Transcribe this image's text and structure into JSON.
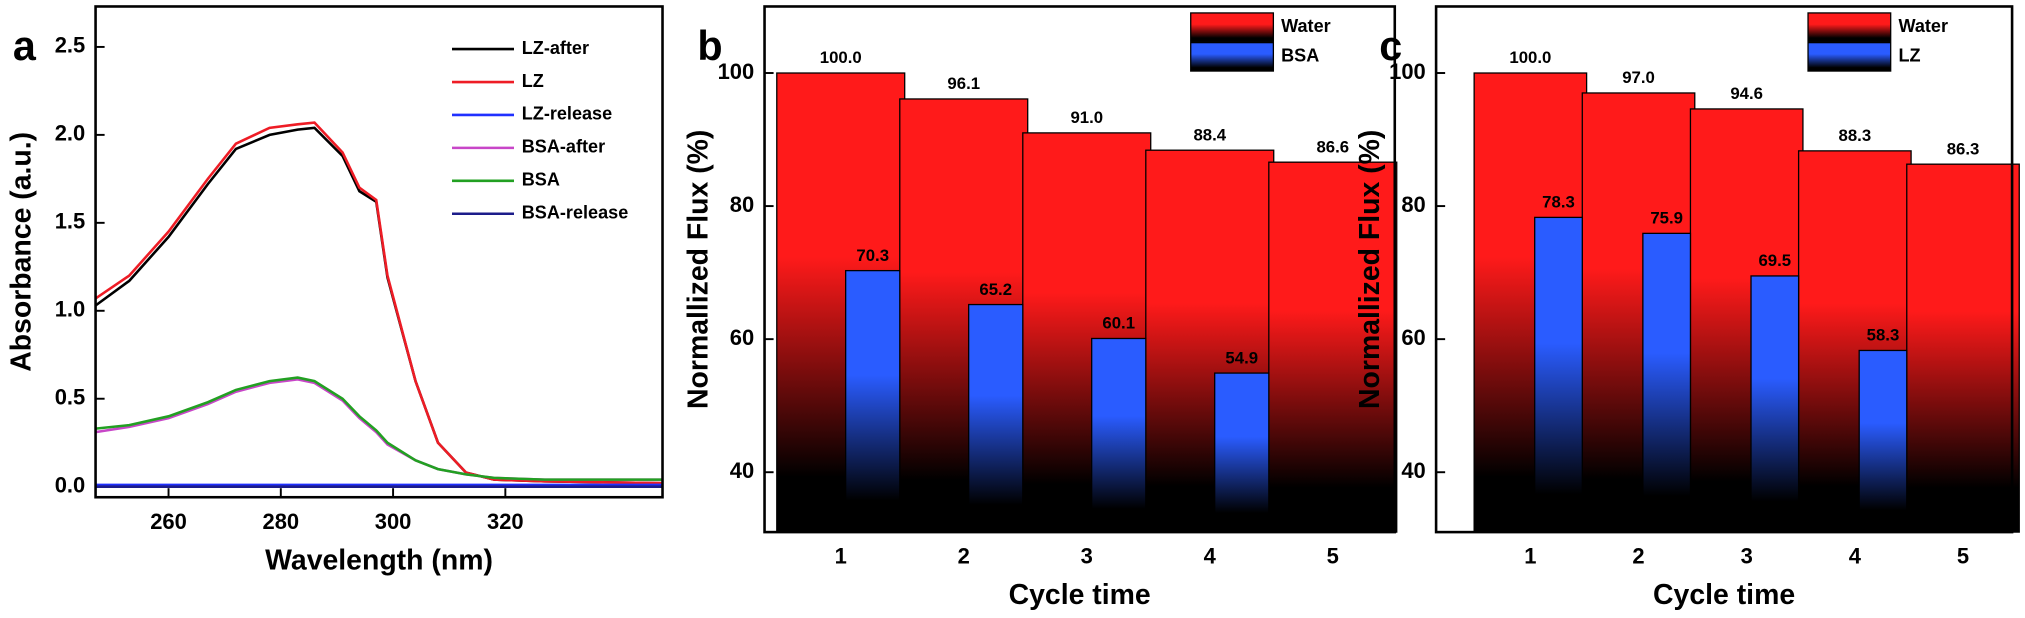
{
  "chart_data": [
    {
      "panel": "a",
      "type": "line",
      "x_label": "Wavelength (nm)",
      "y_label": "Absorbance (a.u.)",
      "xlim": [
        247,
        348
      ],
      "xticks": [
        260,
        280,
        300,
        320
      ],
      "ylim": [
        -0.06,
        2.73
      ],
      "yticks": [
        {
          "value": 0,
          "label": "0.0"
        },
        {
          "value": 0.5,
          "label": "0.5"
        },
        {
          "value": 1,
          "label": "1.0"
        },
        {
          "value": 1.5,
          "label": "1.5"
        },
        {
          "value": 2,
          "label": "2.0"
        },
        {
          "value": 2.5,
          "label": "2.5"
        }
      ],
      "legend": "upper right",
      "x": [
        247,
        253,
        260,
        267,
        272,
        278,
        283,
        286,
        291,
        294,
        297,
        299,
        304,
        308,
        313,
        318,
        327,
        348
      ],
      "series": [
        {
          "name": "LZ-after",
          "color": "#000000",
          "values": [
            1.03,
            1.17,
            1.42,
            1.72,
            1.92,
            2.0,
            2.03,
            2.04,
            1.88,
            1.68,
            1.62,
            1.19,
            0.6,
            0.25,
            0.08,
            0.04,
            0.03,
            0.02
          ]
        },
        {
          "name": "LZ",
          "color": "#ee1c25",
          "values": [
            1.07,
            1.2,
            1.45,
            1.75,
            1.95,
            2.04,
            2.06,
            2.07,
            1.9,
            1.7,
            1.63,
            1.2,
            0.6,
            0.25,
            0.08,
            0.04,
            0.03,
            0.02
          ]
        },
        {
          "name": "LZ-release",
          "color": "#2030ff",
          "values": [
            0.01,
            0.01,
            0.01,
            0.01,
            0.01,
            0.01,
            0.01,
            0.01,
            0.01,
            0.01,
            0.01,
            0.01,
            0.01,
            0.01,
            0.01,
            0.01,
            0.01,
            0.01
          ]
        },
        {
          "name": "BSA-after",
          "color": "#c846c8",
          "values": [
            0.31,
            0.34,
            0.39,
            0.47,
            0.54,
            0.59,
            0.61,
            0.59,
            0.49,
            0.39,
            0.31,
            0.24,
            0.15,
            0.1,
            0.07,
            0.05,
            0.04,
            0.04
          ]
        },
        {
          "name": "BSA",
          "color": "#22a022",
          "values": [
            0.33,
            0.35,
            0.4,
            0.48,
            0.55,
            0.6,
            0.62,
            0.6,
            0.5,
            0.4,
            0.32,
            0.25,
            0.15,
            0.1,
            0.07,
            0.05,
            0.04,
            0.04
          ]
        },
        {
          "name": "BSA-release",
          "color": "#1c1c8a",
          "values": [
            0,
            0,
            0,
            0,
            0,
            0,
            0,
            0,
            0,
            0,
            0,
            0,
            0,
            0,
            0,
            0,
            0,
            0
          ]
        }
      ]
    },
    {
      "panel": "b",
      "type": "bar",
      "x_label": "Cycle time",
      "y_label": "Normallized Flux (%)",
      "categories": [
        "1",
        "2",
        "3",
        "4",
        "5"
      ],
      "ylim": [
        31,
        110
      ],
      "yticks": [
        40,
        60,
        80,
        100
      ],
      "legend": "upper right",
      "series": [
        {
          "name": "Water",
          "color": "#ff1a1a",
          "values": [
            100,
            96.1,
            91,
            88.4,
            86.6
          ],
          "value_labels": [
            "100.0",
            "96.1",
            "91.0",
            "88.4",
            "86.6"
          ]
        },
        {
          "name": "BSA",
          "color": "#2a5cff",
          "values": [
            70.3,
            65.2,
            60.1,
            54.9,
            null
          ],
          "value_labels": [
            "70.3",
            "65.2",
            "60.1",
            "54.9",
            null
          ]
        }
      ]
    },
    {
      "panel": "c",
      "type": "bar",
      "x_label": "Cycle time",
      "y_label": "Normallized Flux (%)",
      "categories": [
        "1",
        "2",
        "3",
        "4",
        "5"
      ],
      "ylim": [
        31,
        110
      ],
      "yticks": [
        40,
        60,
        80,
        100
      ],
      "legend": "upper right",
      "series": [
        {
          "name": "Water",
          "color": "#ff1a1a",
          "values": [
            100,
            97,
            94.6,
            88.3,
            86.3
          ],
          "value_labels": [
            "100.0",
            "97.0",
            "94.6",
            "88.3",
            "86.3"
          ]
        },
        {
          "name": "LZ",
          "color": "#2a5cff",
          "values": [
            78.3,
            75.9,
            69.5,
            58.3,
            null
          ],
          "value_labels": [
            "78.3",
            "75.9",
            "69.5",
            "58.3",
            null
          ]
        }
      ]
    }
  ]
}
